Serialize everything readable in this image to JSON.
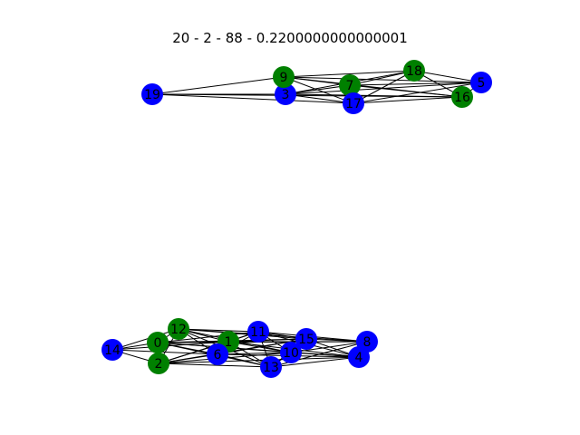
{
  "title": "20 - 2 - 88 - 0.2200000000000001",
  "colors": {
    "green": "#008000",
    "blue": "#0000ff",
    "edge": "#000000"
  },
  "nodes": [
    {
      "id": "0",
      "color": "green"
    },
    {
      "id": "1",
      "color": "green"
    },
    {
      "id": "2",
      "color": "green"
    },
    {
      "id": "3",
      "color": "blue"
    },
    {
      "id": "4",
      "color": "blue"
    },
    {
      "id": "5",
      "color": "blue"
    },
    {
      "id": "6",
      "color": "blue"
    },
    {
      "id": "7",
      "color": "green"
    },
    {
      "id": "8",
      "color": "blue"
    },
    {
      "id": "9",
      "color": "green"
    },
    {
      "id": "10",
      "color": "blue"
    },
    {
      "id": "11",
      "color": "blue"
    },
    {
      "id": "12",
      "color": "green"
    },
    {
      "id": "13",
      "color": "blue"
    },
    {
      "id": "14",
      "color": "blue"
    },
    {
      "id": "15",
      "color": "blue"
    },
    {
      "id": "16",
      "color": "green"
    },
    {
      "id": "17",
      "color": "blue"
    },
    {
      "id": "18",
      "color": "green"
    },
    {
      "id": "19",
      "color": "blue"
    }
  ],
  "edges": [
    [
      "19",
      "3"
    ],
    [
      "19",
      "9"
    ],
    [
      "19",
      "17"
    ],
    [
      "19",
      "16"
    ],
    [
      "9",
      "3"
    ],
    [
      "9",
      "7"
    ],
    [
      "9",
      "18"
    ],
    [
      "9",
      "5"
    ],
    [
      "9",
      "17"
    ],
    [
      "9",
      "16"
    ],
    [
      "3",
      "7"
    ],
    [
      "3",
      "17"
    ],
    [
      "3",
      "18"
    ],
    [
      "3",
      "16"
    ],
    [
      "3",
      "5"
    ],
    [
      "7",
      "17"
    ],
    [
      "7",
      "18"
    ],
    [
      "7",
      "16"
    ],
    [
      "7",
      "5"
    ],
    [
      "17",
      "18"
    ],
    [
      "17",
      "16"
    ],
    [
      "17",
      "5"
    ],
    [
      "18",
      "16"
    ],
    [
      "18",
      "5"
    ],
    [
      "16",
      "5"
    ],
    [
      "14",
      "0"
    ],
    [
      "14",
      "12"
    ],
    [
      "14",
      "2"
    ],
    [
      "14",
      "1"
    ],
    [
      "14",
      "6"
    ],
    [
      "0",
      "12"
    ],
    [
      "0",
      "2"
    ],
    [
      "0",
      "1"
    ],
    [
      "0",
      "6"
    ],
    [
      "0",
      "11"
    ],
    [
      "0",
      "13"
    ],
    [
      "0",
      "10"
    ],
    [
      "0",
      "15"
    ],
    [
      "0",
      "4"
    ],
    [
      "0",
      "8"
    ],
    [
      "12",
      "2"
    ],
    [
      "12",
      "1"
    ],
    [
      "12",
      "6"
    ],
    [
      "12",
      "11"
    ],
    [
      "12",
      "15"
    ],
    [
      "12",
      "10"
    ],
    [
      "12",
      "8"
    ],
    [
      "12",
      "13"
    ],
    [
      "2",
      "1"
    ],
    [
      "2",
      "6"
    ],
    [
      "2",
      "13"
    ],
    [
      "2",
      "10"
    ],
    [
      "2",
      "11"
    ],
    [
      "2",
      "4"
    ],
    [
      "2",
      "15"
    ],
    [
      "1",
      "6"
    ],
    [
      "1",
      "11"
    ],
    [
      "1",
      "13"
    ],
    [
      "1",
      "10"
    ],
    [
      "1",
      "15"
    ],
    [
      "1",
      "4"
    ],
    [
      "1",
      "8"
    ],
    [
      "6",
      "11"
    ],
    [
      "6",
      "13"
    ],
    [
      "6",
      "10"
    ],
    [
      "6",
      "15"
    ],
    [
      "6",
      "4"
    ],
    [
      "11",
      "13"
    ],
    [
      "11",
      "10"
    ],
    [
      "11",
      "15"
    ],
    [
      "11",
      "8"
    ],
    [
      "11",
      "4"
    ],
    [
      "13",
      "10"
    ],
    [
      "13",
      "15"
    ],
    [
      "13",
      "4"
    ],
    [
      "13",
      "8"
    ],
    [
      "10",
      "15"
    ],
    [
      "10",
      "4"
    ],
    [
      "10",
      "8"
    ],
    [
      "15",
      "8"
    ],
    [
      "15",
      "4"
    ],
    [
      "8",
      "4"
    ]
  ]
}
